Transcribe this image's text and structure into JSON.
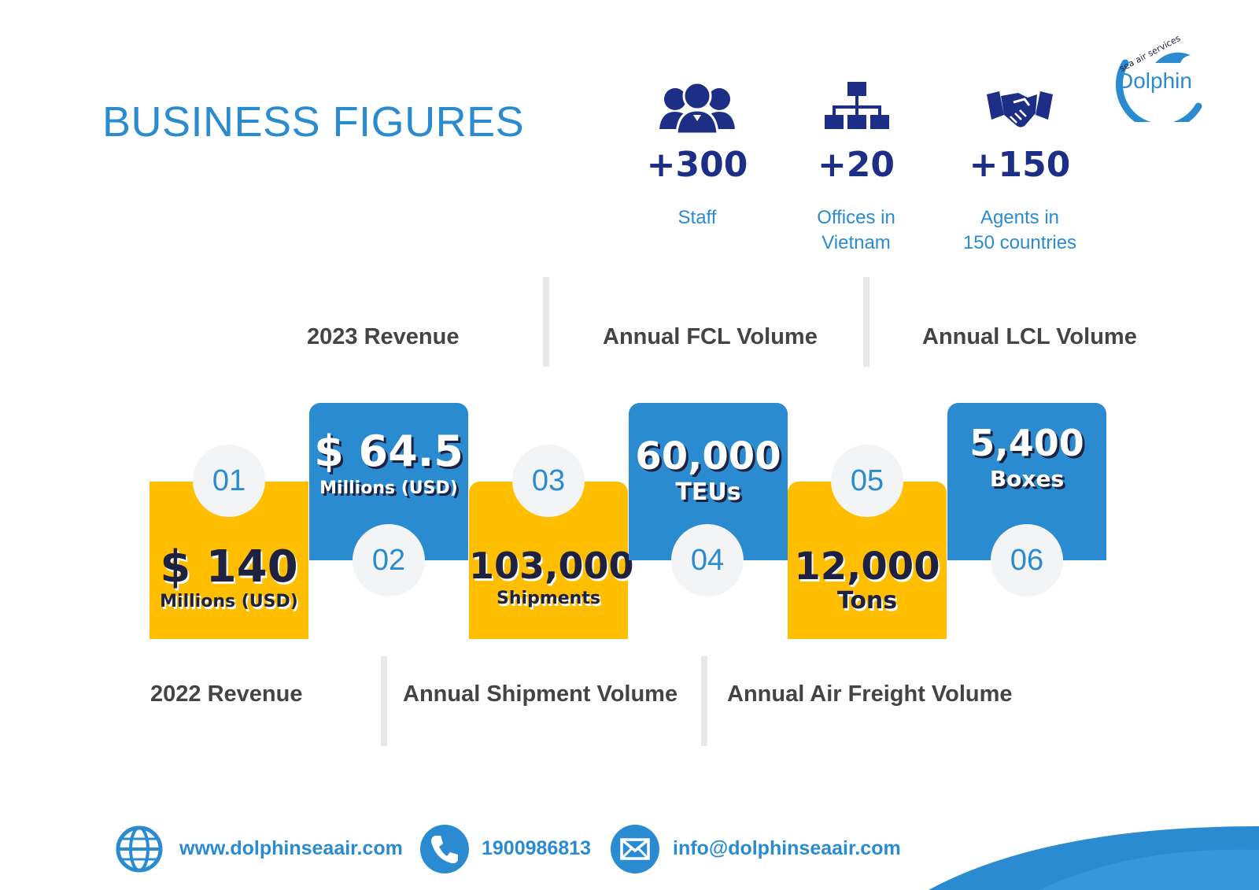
{
  "header": {
    "title": "BUSINESS FIGURES"
  },
  "logo": {
    "text": "Dolphin",
    "tagline": "sea air services"
  },
  "stats": [
    {
      "icon": "staff-group-icon",
      "value": "+300",
      "label": "Staff"
    },
    {
      "icon": "org-chart-icon",
      "value": "+20",
      "label": "Offices in\nVietnam"
    },
    {
      "icon": "handshake-icon",
      "value": "+150",
      "label": "Agents in\n150 countries"
    }
  ],
  "captions_top": [
    "2023 Revenue",
    "Annual FCL Volume",
    "Annual LCL Volume"
  ],
  "captions_bottom": [
    "2022 Revenue",
    "Annual Shipment Volume",
    "Annual Air Freight Volume"
  ],
  "figures": [
    {
      "index": "01",
      "value": "$ 140",
      "unit": "Millions (USD)"
    },
    {
      "index": "02",
      "value": "$ 64.5",
      "unit": "Millions (USD)"
    },
    {
      "index": "03",
      "value": "103,000",
      "unit": "Shipments"
    },
    {
      "index": "04",
      "value": "60,000",
      "unit": "TEUs"
    },
    {
      "index": "05",
      "value": "12,000",
      "unit": "Tons"
    },
    {
      "index": "06",
      "value": "5,400",
      "unit": "Boxes"
    }
  ],
  "footer": {
    "website": "www.dolphinseaair.com",
    "phone": "1900986813",
    "email": "info@dolphinseaair.com"
  },
  "colors": {
    "brand_blue": "#2a8bd0",
    "navy": "#1d2e86",
    "yellow": "#ffbe00"
  }
}
